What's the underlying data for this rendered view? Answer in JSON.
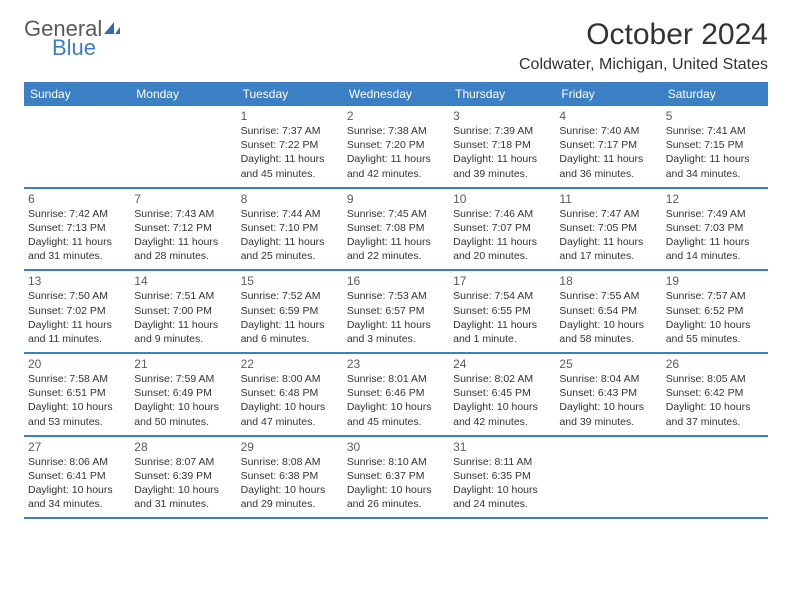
{
  "brand": {
    "word1": "General",
    "word2": "Blue",
    "icon_color": "#2e6bb0",
    "text_gray": "#5a5a5a"
  },
  "title": "October 2024",
  "location": "Coldwater, Michigan, United States",
  "colors": {
    "header_bg": "#3b7fc4",
    "header_text": "#ffffff",
    "border": "#3b7fc4",
    "body_text": "#333333",
    "day_number": "#5a5a5a",
    "background": "#ffffff"
  },
  "day_names": [
    "Sunday",
    "Monday",
    "Tuesday",
    "Wednesday",
    "Thursday",
    "Friday",
    "Saturday"
  ],
  "weeks": [
    [
      null,
      null,
      {
        "n": "1",
        "sr": "Sunrise: 7:37 AM",
        "ss": "Sunset: 7:22 PM",
        "d1": "Daylight: 11 hours",
        "d2": "and 45 minutes."
      },
      {
        "n": "2",
        "sr": "Sunrise: 7:38 AM",
        "ss": "Sunset: 7:20 PM",
        "d1": "Daylight: 11 hours",
        "d2": "and 42 minutes."
      },
      {
        "n": "3",
        "sr": "Sunrise: 7:39 AM",
        "ss": "Sunset: 7:18 PM",
        "d1": "Daylight: 11 hours",
        "d2": "and 39 minutes."
      },
      {
        "n": "4",
        "sr": "Sunrise: 7:40 AM",
        "ss": "Sunset: 7:17 PM",
        "d1": "Daylight: 11 hours",
        "d2": "and 36 minutes."
      },
      {
        "n": "5",
        "sr": "Sunrise: 7:41 AM",
        "ss": "Sunset: 7:15 PM",
        "d1": "Daylight: 11 hours",
        "d2": "and 34 minutes."
      }
    ],
    [
      {
        "n": "6",
        "sr": "Sunrise: 7:42 AM",
        "ss": "Sunset: 7:13 PM",
        "d1": "Daylight: 11 hours",
        "d2": "and 31 minutes."
      },
      {
        "n": "7",
        "sr": "Sunrise: 7:43 AM",
        "ss": "Sunset: 7:12 PM",
        "d1": "Daylight: 11 hours",
        "d2": "and 28 minutes."
      },
      {
        "n": "8",
        "sr": "Sunrise: 7:44 AM",
        "ss": "Sunset: 7:10 PM",
        "d1": "Daylight: 11 hours",
        "d2": "and 25 minutes."
      },
      {
        "n": "9",
        "sr": "Sunrise: 7:45 AM",
        "ss": "Sunset: 7:08 PM",
        "d1": "Daylight: 11 hours",
        "d2": "and 22 minutes."
      },
      {
        "n": "10",
        "sr": "Sunrise: 7:46 AM",
        "ss": "Sunset: 7:07 PM",
        "d1": "Daylight: 11 hours",
        "d2": "and 20 minutes."
      },
      {
        "n": "11",
        "sr": "Sunrise: 7:47 AM",
        "ss": "Sunset: 7:05 PM",
        "d1": "Daylight: 11 hours",
        "d2": "and 17 minutes."
      },
      {
        "n": "12",
        "sr": "Sunrise: 7:49 AM",
        "ss": "Sunset: 7:03 PM",
        "d1": "Daylight: 11 hours",
        "d2": "and 14 minutes."
      }
    ],
    [
      {
        "n": "13",
        "sr": "Sunrise: 7:50 AM",
        "ss": "Sunset: 7:02 PM",
        "d1": "Daylight: 11 hours",
        "d2": "and 11 minutes."
      },
      {
        "n": "14",
        "sr": "Sunrise: 7:51 AM",
        "ss": "Sunset: 7:00 PM",
        "d1": "Daylight: 11 hours",
        "d2": "and 9 minutes."
      },
      {
        "n": "15",
        "sr": "Sunrise: 7:52 AM",
        "ss": "Sunset: 6:59 PM",
        "d1": "Daylight: 11 hours",
        "d2": "and 6 minutes."
      },
      {
        "n": "16",
        "sr": "Sunrise: 7:53 AM",
        "ss": "Sunset: 6:57 PM",
        "d1": "Daylight: 11 hours",
        "d2": "and 3 minutes."
      },
      {
        "n": "17",
        "sr": "Sunrise: 7:54 AM",
        "ss": "Sunset: 6:55 PM",
        "d1": "Daylight: 11 hours",
        "d2": "and 1 minute."
      },
      {
        "n": "18",
        "sr": "Sunrise: 7:55 AM",
        "ss": "Sunset: 6:54 PM",
        "d1": "Daylight: 10 hours",
        "d2": "and 58 minutes."
      },
      {
        "n": "19",
        "sr": "Sunrise: 7:57 AM",
        "ss": "Sunset: 6:52 PM",
        "d1": "Daylight: 10 hours",
        "d2": "and 55 minutes."
      }
    ],
    [
      {
        "n": "20",
        "sr": "Sunrise: 7:58 AM",
        "ss": "Sunset: 6:51 PM",
        "d1": "Daylight: 10 hours",
        "d2": "and 53 minutes."
      },
      {
        "n": "21",
        "sr": "Sunrise: 7:59 AM",
        "ss": "Sunset: 6:49 PM",
        "d1": "Daylight: 10 hours",
        "d2": "and 50 minutes."
      },
      {
        "n": "22",
        "sr": "Sunrise: 8:00 AM",
        "ss": "Sunset: 6:48 PM",
        "d1": "Daylight: 10 hours",
        "d2": "and 47 minutes."
      },
      {
        "n": "23",
        "sr": "Sunrise: 8:01 AM",
        "ss": "Sunset: 6:46 PM",
        "d1": "Daylight: 10 hours",
        "d2": "and 45 minutes."
      },
      {
        "n": "24",
        "sr": "Sunrise: 8:02 AM",
        "ss": "Sunset: 6:45 PM",
        "d1": "Daylight: 10 hours",
        "d2": "and 42 minutes."
      },
      {
        "n": "25",
        "sr": "Sunrise: 8:04 AM",
        "ss": "Sunset: 6:43 PM",
        "d1": "Daylight: 10 hours",
        "d2": "and 39 minutes."
      },
      {
        "n": "26",
        "sr": "Sunrise: 8:05 AM",
        "ss": "Sunset: 6:42 PM",
        "d1": "Daylight: 10 hours",
        "d2": "and 37 minutes."
      }
    ],
    [
      {
        "n": "27",
        "sr": "Sunrise: 8:06 AM",
        "ss": "Sunset: 6:41 PM",
        "d1": "Daylight: 10 hours",
        "d2": "and 34 minutes."
      },
      {
        "n": "28",
        "sr": "Sunrise: 8:07 AM",
        "ss": "Sunset: 6:39 PM",
        "d1": "Daylight: 10 hours",
        "d2": "and 31 minutes."
      },
      {
        "n": "29",
        "sr": "Sunrise: 8:08 AM",
        "ss": "Sunset: 6:38 PM",
        "d1": "Daylight: 10 hours",
        "d2": "and 29 minutes."
      },
      {
        "n": "30",
        "sr": "Sunrise: 8:10 AM",
        "ss": "Sunset: 6:37 PM",
        "d1": "Daylight: 10 hours",
        "d2": "and 26 minutes."
      },
      {
        "n": "31",
        "sr": "Sunrise: 8:11 AM",
        "ss": "Sunset: 6:35 PM",
        "d1": "Daylight: 10 hours",
        "d2": "and 24 minutes."
      },
      null,
      null
    ]
  ]
}
